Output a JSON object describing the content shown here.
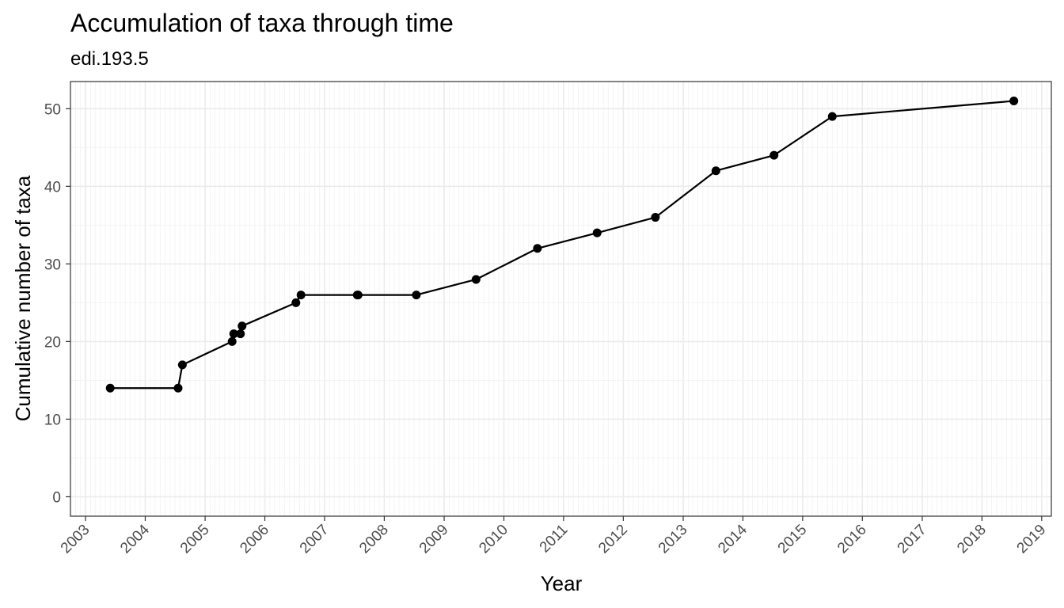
{
  "chart_data": {
    "type": "line",
    "title": "Accumulation of taxa through time",
    "subtitle": "edi.193.5",
    "xlabel": "Year",
    "ylabel": "Cumulative number of taxa",
    "x_ticks": [
      "2003",
      "2004",
      "2005",
      "2006",
      "2007",
      "2008",
      "2009",
      "2010",
      "2011",
      "2012",
      "2013",
      "2014",
      "2015",
      "2016",
      "2017",
      "2018",
      "2019"
    ],
    "y_ticks": [
      0,
      10,
      20,
      30,
      40,
      50
    ],
    "xlim": [
      "2002-10-01",
      "2019-03-01"
    ],
    "ylim": [
      -2.5,
      53.5
    ],
    "grid": true,
    "x_minor_grid": "monthly",
    "series": [
      {
        "points": [
          {
            "x": "2003-06-01",
            "y": 14
          },
          {
            "x": "2004-07-20",
            "y": 14
          },
          {
            "x": "2004-08-15",
            "y": 17
          },
          {
            "x": "2005-06-15",
            "y": 20
          },
          {
            "x": "2005-06-25",
            "y": 21
          },
          {
            "x": "2005-08-05",
            "y": 21
          },
          {
            "x": "2005-08-15",
            "y": 22
          },
          {
            "x": "2006-07-10",
            "y": 25
          },
          {
            "x": "2006-08-10",
            "y": 26
          },
          {
            "x": "2007-07-20",
            "y": 26
          },
          {
            "x": "2007-07-25",
            "y": 26
          },
          {
            "x": "2008-07-15",
            "y": 26
          },
          {
            "x": "2009-07-15",
            "y": 28
          },
          {
            "x": "2010-07-25",
            "y": 32
          },
          {
            "x": "2011-07-25",
            "y": 34
          },
          {
            "x": "2012-07-15",
            "y": 36
          },
          {
            "x": "2013-07-20",
            "y": 42
          },
          {
            "x": "2014-07-10",
            "y": 44
          },
          {
            "x": "2015-07-01",
            "y": 49
          },
          {
            "x": "2018-07-15",
            "y": 51
          }
        ]
      }
    ]
  }
}
